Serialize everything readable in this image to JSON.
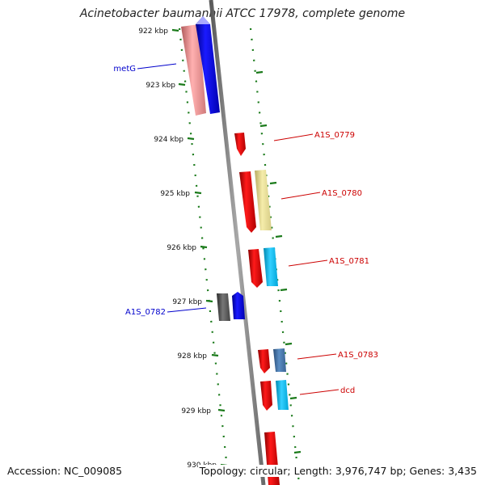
{
  "title": "Acinetobacter baumannii ATCC 17978, complete genome",
  "footer": {
    "accession": "Accession: NC_009085",
    "topology": "Topology: circular; Length: 3,976,747 bp; Genes: 3,435"
  },
  "ticks": [
    {
      "label": "922 kbp"
    },
    {
      "label": "923 kbp"
    },
    {
      "label": "924 kbp"
    },
    {
      "label": "925 kbp"
    },
    {
      "label": "926 kbp"
    },
    {
      "label": "927 kbp"
    },
    {
      "label": "928 kbp"
    },
    {
      "label": "929 kbp"
    },
    {
      "label": "930 kbp"
    }
  ],
  "genes": [
    {
      "label": "metG",
      "strand": "reverse",
      "color": "#0000ee"
    },
    {
      "label": "A1S_0779",
      "strand": "forward",
      "color": "#dd0000"
    },
    {
      "label": "A1S_0780",
      "strand": "forward",
      "color": "#dd0000"
    },
    {
      "label": "A1S_0781",
      "strand": "forward",
      "color": "#dd0000"
    },
    {
      "label": "A1S_0782",
      "strand": "reverse",
      "color": "#0000ee"
    },
    {
      "label": "A1S_0783",
      "strand": "forward",
      "color": "#dd0000"
    },
    {
      "label": "dcd",
      "strand": "forward",
      "color": "#dd0000"
    }
  ],
  "colors": {
    "backbone": "#7a7a7a",
    "ruler": "#1a7a1a",
    "forward": "#ee0000",
    "reverse": "#0000ee"
  }
}
